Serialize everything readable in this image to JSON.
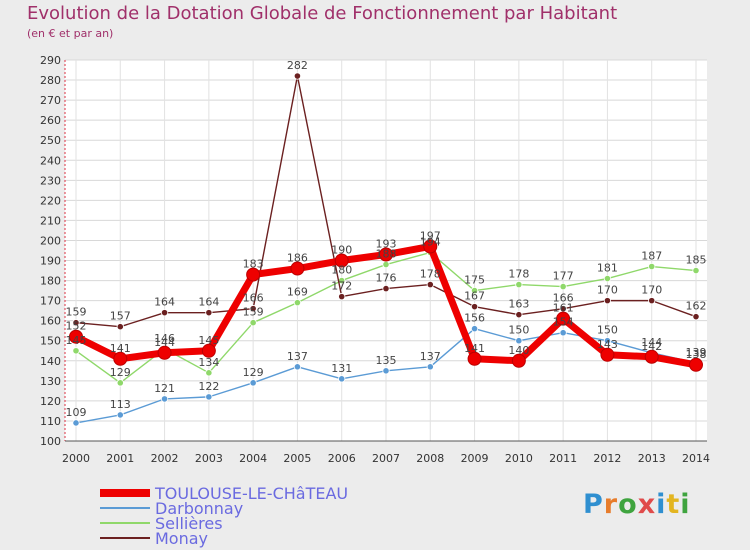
{
  "header": {
    "title": "Evolution de la Dotation Globale de Fonctionnement par Habitant",
    "subtitle": "(en € et par an)"
  },
  "logo": {
    "text": "Proxiti",
    "colors": [
      "#2f8fd0",
      "#e77c2b",
      "#3fa43f",
      "#e04b4b",
      "#2f8fd0",
      "#e3b520",
      "#3fa43f"
    ]
  },
  "chart_data": {
    "type": "line",
    "x": [
      "2000",
      "2001",
      "2002",
      "2003",
      "2004",
      "2005",
      "2006",
      "2007",
      "2008",
      "2009",
      "2010",
      "2011",
      "2012",
      "2013",
      "2014"
    ],
    "ylim": [
      100,
      290
    ],
    "yticks": [
      100,
      110,
      120,
      130,
      140,
      150,
      160,
      170,
      180,
      190,
      200,
      210,
      220,
      230,
      240,
      250,
      260,
      270,
      280,
      290
    ],
    "grid": true,
    "legend_position": "bottom-left",
    "series": [
      {
        "name": "TOULOUSE-LE-CHâTEAU",
        "color": "#ee0000",
        "values": [
          152,
          141,
          144,
          145,
          183,
          186,
          190,
          193,
          197,
          141,
          140,
          161,
          143,
          142,
          138
        ],
        "labels": [
          "152",
          "141",
          "144",
          "145",
          "183",
          "186",
          "190",
          "193",
          "197",
          "141",
          "140",
          "161",
          "143",
          "142",
          "138"
        ]
      },
      {
        "name": "Darbonnay",
        "color": "#5b9bd5",
        "values": [
          109,
          113,
          121,
          122,
          129,
          137,
          131,
          135,
          137,
          156,
          150,
          154,
          150,
          144,
          139
        ],
        "labels": [
          "109",
          "113",
          "121",
          "122",
          "129",
          "137",
          "131",
          "135",
          "137",
          "156",
          "150",
          "154",
          "150",
          "144",
          "139"
        ]
      },
      {
        "name": "Sellières",
        "color": "#8fd86a",
        "values": [
          145,
          129,
          146,
          134,
          159,
          169,
          180,
          188,
          194,
          175,
          178,
          177,
          181,
          187,
          185
        ],
        "labels": [
          "145",
          "129",
          "146",
          "134",
          "159",
          "169",
          "180",
          "188",
          "194",
          "175",
          "178",
          "177",
          "181",
          "187",
          "185"
        ]
      },
      {
        "name": "Monay",
        "color": "#6b2020",
        "values": [
          159,
          157,
          164,
          164,
          166,
          282,
          172,
          176,
          178,
          167,
          163,
          166,
          170,
          170,
          162
        ],
        "labels": [
          "159",
          "157",
          "164",
          "164",
          "166",
          "282",
          "172",
          "176",
          "178",
          "167",
          "163",
          "166",
          "170",
          "170",
          "162"
        ]
      }
    ]
  }
}
